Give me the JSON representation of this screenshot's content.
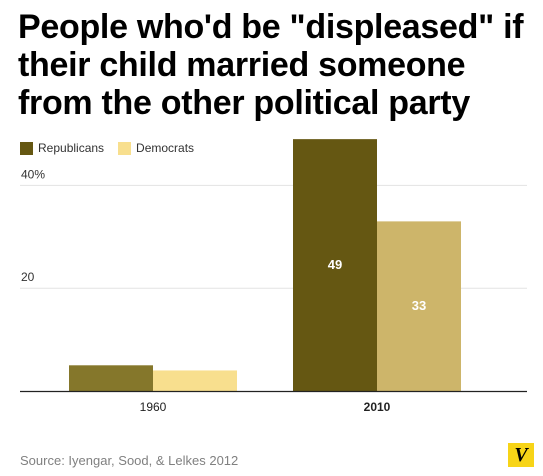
{
  "title": "People who'd be \"displeased\" if their child married someone from the other political party",
  "legend": [
    {
      "label": "Republicans",
      "color": "#655712"
    },
    {
      "label": "Democrats",
      "color": "#f8df8e"
    }
  ],
  "source": "Source: Iyengar, Sood, & Lelkes 2012",
  "logo_letter": "V",
  "colors": {
    "rep_1960": "#85772b",
    "dem_1960": "#f8df8e",
    "rep_2010": "#655712",
    "dem_2010": "#cdb56a",
    "grid": "#e3e3e3",
    "axis": "#222222",
    "data_label": "#ffffff"
  },
  "chart_data": {
    "type": "bar",
    "categories": [
      "1960",
      "2010"
    ],
    "series": [
      {
        "name": "Republicans",
        "values": [
          5,
          49
        ]
      },
      {
        "name": "Democrats",
        "values": [
          4,
          33
        ]
      }
    ],
    "value_labels": [
      [
        "",
        ""
      ],
      [
        "49",
        "33"
      ]
    ],
    "yticks": [
      {
        "value": 20,
        "label": "20"
      },
      {
        "value": 40,
        "label": "40%"
      }
    ],
    "ylim": [
      0,
      50
    ],
    "grid": true,
    "legend_position": "top-left",
    "xlabel": "",
    "ylabel": "",
    "bold_categories": [
      "2010"
    ]
  }
}
